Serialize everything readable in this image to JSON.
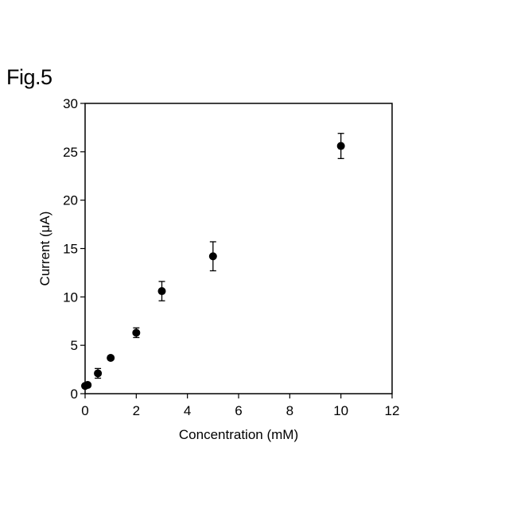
{
  "figure_label": "Fig.5",
  "chart_data": {
    "type": "scatter",
    "title": "",
    "xlabel": "Concentration (mM)",
    "ylabel": "Current (μA)",
    "xlim": [
      0,
      12
    ],
    "ylim": [
      0,
      30
    ],
    "x_ticks": [
      0,
      2,
      4,
      6,
      8,
      10,
      12
    ],
    "y_ticks": [
      0,
      5,
      10,
      15,
      20,
      25,
      30
    ],
    "grid": false,
    "legend": "none",
    "marker_color": "#000000",
    "series": [
      {
        "points": [
          {
            "x": 0.0,
            "y": 0.8,
            "err": 0.2
          },
          {
            "x": 0.1,
            "y": 0.9,
            "err": 0.2
          },
          {
            "x": 0.5,
            "y": 2.1,
            "err": 0.5
          },
          {
            "x": 1.0,
            "y": 3.7,
            "err": 0.2
          },
          {
            "x": 2.0,
            "y": 6.3,
            "err": 0.5
          },
          {
            "x": 3.0,
            "y": 10.6,
            "err": 1.0
          },
          {
            "x": 5.0,
            "y": 14.2,
            "err": 1.5
          },
          {
            "x": 10.0,
            "y": 25.6,
            "err": 1.3
          }
        ]
      }
    ]
  }
}
